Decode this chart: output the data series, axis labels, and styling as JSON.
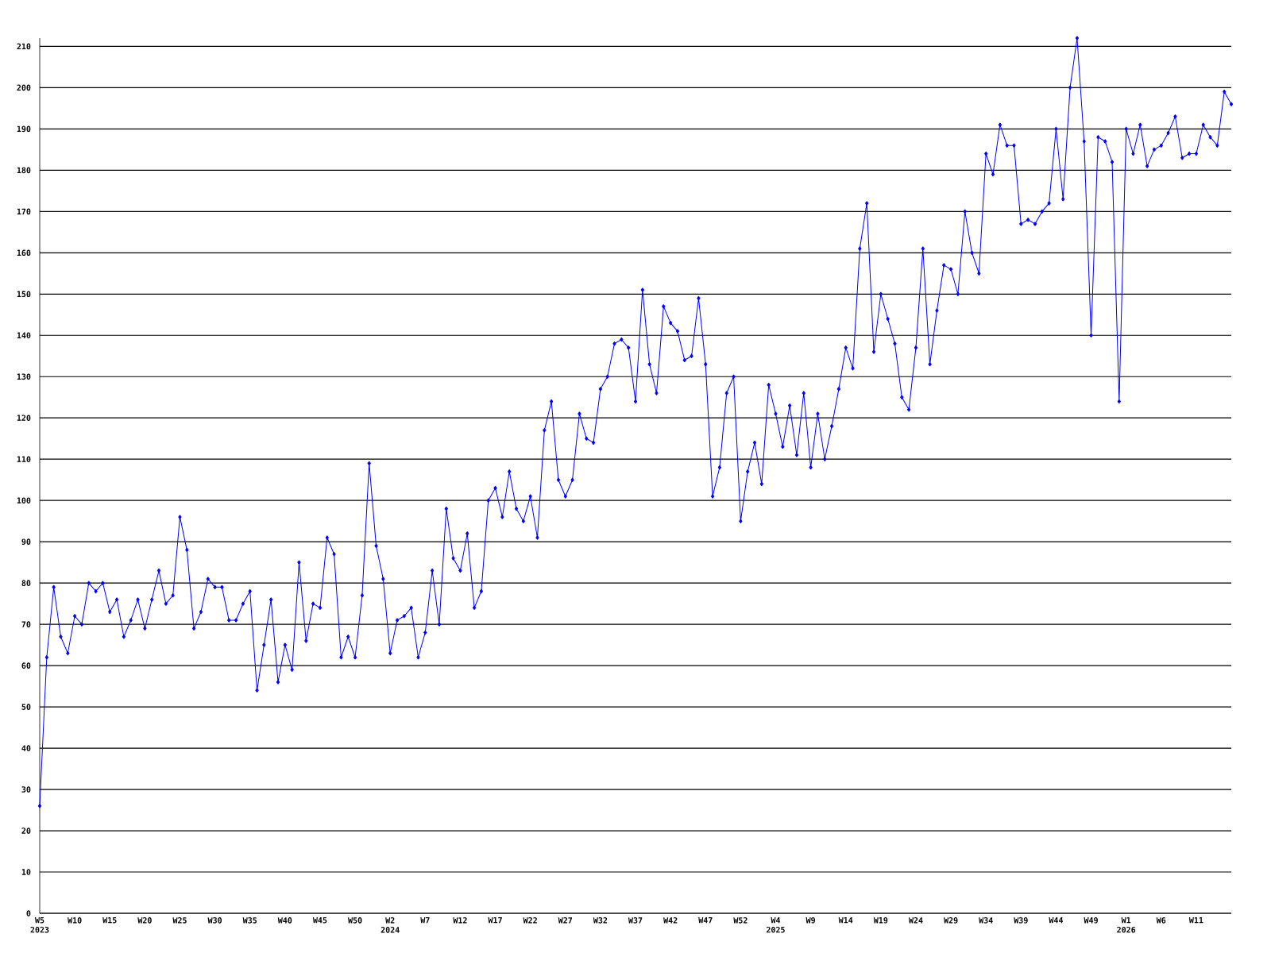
{
  "chart_data": {
    "type": "line",
    "categories": [
      "W5 2023",
      null,
      null,
      null,
      null,
      "W10",
      null,
      null,
      null,
      null,
      "W15",
      null,
      null,
      null,
      null,
      "W20",
      null,
      null,
      null,
      null,
      "W25",
      null,
      null,
      null,
      null,
      "W30",
      null,
      null,
      null,
      null,
      "W35",
      null,
      null,
      null,
      null,
      "W40",
      null,
      null,
      null,
      null,
      "W45",
      null,
      null,
      null,
      null,
      "W50",
      null,
      null,
      null,
      null,
      "W2 2024",
      null,
      null,
      null,
      null,
      "W7",
      null,
      null,
      null,
      null,
      "W12",
      null,
      null,
      null,
      null,
      "W17",
      null,
      null,
      null,
      null,
      "W22",
      null,
      null,
      null,
      null,
      "W27",
      null,
      null,
      null,
      null,
      "W32",
      null,
      null,
      null,
      null,
      "W37",
      null,
      null,
      null,
      null,
      "W42",
      null,
      null,
      null,
      null,
      "W47",
      null,
      null,
      null,
      null,
      "W52",
      null,
      null,
      null,
      null,
      "W4 2025",
      null,
      null,
      null,
      null,
      "W9",
      null,
      null,
      null,
      null,
      "W14",
      null,
      null,
      null,
      null,
      "W19",
      null,
      null,
      null,
      null,
      "W24",
      null,
      null,
      null,
      null,
      "W29",
      null,
      null,
      null,
      null,
      "W34",
      null,
      null,
      null,
      null,
      "W39",
      null,
      null,
      null,
      null,
      "W44",
      null,
      null,
      null,
      null,
      "W49",
      null,
      null,
      null,
      null,
      "W1 2026",
      null,
      null,
      null,
      null,
      "W6",
      null,
      null,
      null,
      null,
      "W11",
      null,
      null,
      null,
      null,
      null
    ],
    "series": [
      {
        "color": "#0000ff",
        "values": [
          26,
          62,
          79,
          67,
          63,
          72,
          70,
          80,
          78,
          80,
          73,
          76,
          67,
          71,
          76,
          69,
          76,
          83,
          75,
          77,
          96,
          88,
          69,
          73,
          81,
          79,
          79,
          71,
          71,
          75,
          78,
          54,
          65,
          76,
          56,
          65,
          59,
          85,
          66,
          75,
          74,
          91,
          87,
          62,
          67,
          62,
          77,
          109,
          89,
          81,
          63,
          71,
          72,
          74,
          62,
          68,
          83,
          70,
          98,
          86,
          83,
          92,
          74,
          78,
          100,
          103,
          96,
          107,
          98,
          95,
          101,
          91,
          117,
          124,
          105,
          101,
          105,
          121,
          115,
          114,
          127,
          130,
          138,
          139,
          137,
          124,
          151,
          133,
          126,
          147,
          143,
          141,
          134,
          135,
          149,
          133,
          101,
          108,
          126,
          130,
          95,
          107,
          114,
          104,
          128,
          121,
          113,
          123,
          111,
          126,
          108,
          121,
          110,
          118,
          127,
          137,
          132,
          161,
          172,
          136,
          150,
          144,
          138,
          125,
          122,
          137,
          161,
          133,
          146,
          157,
          156,
          150,
          170,
          160,
          155,
          184,
          179,
          191,
          186,
          186,
          167,
          168,
          167,
          170,
          172,
          190,
          173,
          200,
          212,
          187,
          140,
          188,
          187,
          182,
          124,
          190,
          184,
          191,
          181,
          185,
          186,
          189,
          193,
          183,
          184,
          184,
          191,
          188,
          186,
          199,
          196
        ]
      }
    ],
    "ylim": [
      0,
      212
    ],
    "yticks": [
      0,
      10,
      20,
      30,
      40,
      50,
      60,
      70,
      80,
      90,
      100,
      110,
      120,
      130,
      140,
      150,
      160,
      170,
      180,
      190,
      200,
      210
    ],
    "grid": "y",
    "marker": "diamond",
    "line_style": "solid"
  }
}
